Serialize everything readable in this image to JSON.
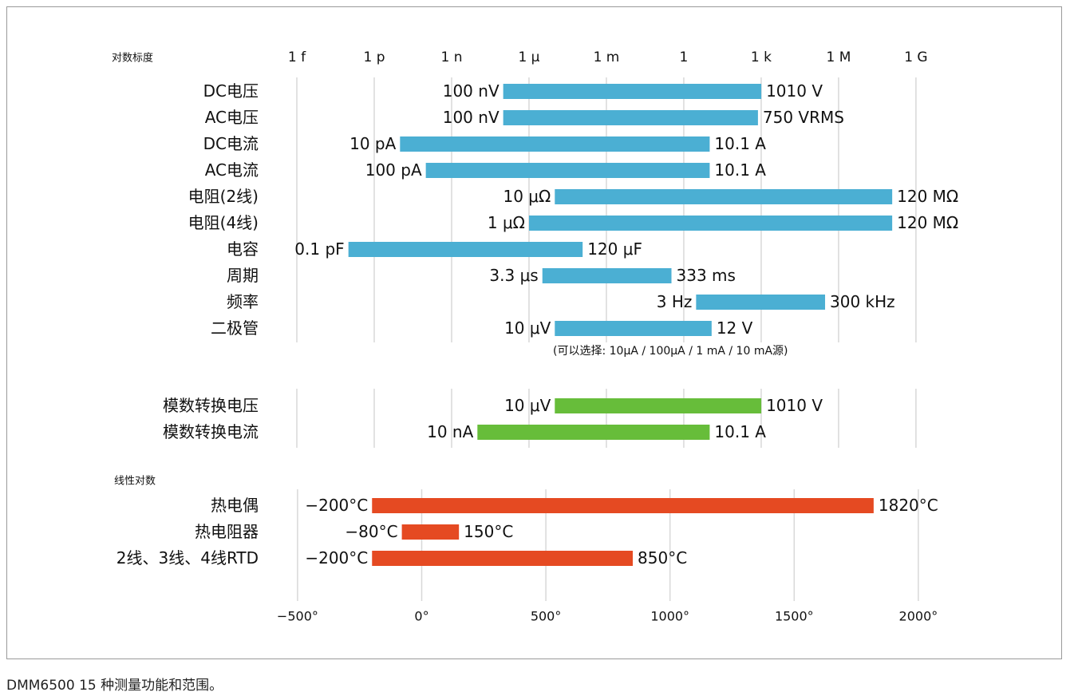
{
  "caption": "DMM6500 15 种测量功能和范围。",
  "colors": {
    "blue": "#4bafd3",
    "green": "#67bd3a",
    "red": "#e54a22",
    "grid": "#d8d8d8"
  },
  "chart_data": [
    {
      "type": "bar",
      "orientation": "horizontal-range",
      "scale": "log10",
      "scale_label": "对数标度",
      "tick_labels": [
        "1 f",
        "1 p",
        "1 n",
        "1 μ",
        "1 m",
        "1",
        "1 k",
        "1 M",
        "1 G"
      ],
      "tick_values": [
        -15,
        -12,
        -9,
        -6,
        -3,
        0,
        3,
        6,
        9
      ],
      "xlim": [
        -15,
        9
      ],
      "rows": [
        {
          "label": "DC电压",
          "min": 1e-07,
          "max": 1010,
          "min_label": "100 nV",
          "max_label": "1010 V"
        },
        {
          "label": "AC电压",
          "min": 1e-07,
          "max": 750,
          "min_label": "100 nV",
          "max_label": "750 VRMS"
        },
        {
          "label": "DC电流",
          "min": 1e-11,
          "max": 10.1,
          "min_label": "10 pA",
          "max_label": "10.1 A"
        },
        {
          "label": "AC电流",
          "min": 1e-10,
          "max": 10.1,
          "min_label": "100 pA",
          "max_label": "10.1 A"
        },
        {
          "label": "电阻(2线)",
          "min": 1e-05,
          "max": 120000000.0,
          "min_label": "10 μΩ",
          "max_label": "120 MΩ"
        },
        {
          "label": "电阻(4线)",
          "min": 1e-06,
          "max": 120000000.0,
          "min_label": "1 μΩ",
          "max_label": "120 MΩ"
        },
        {
          "label": "电容",
          "min": 1e-13,
          "max": 0.00012,
          "min_label": "0.1 pF",
          "max_label": "120 μF"
        },
        {
          "label": "周期",
          "min": 3.3e-06,
          "max": 0.333,
          "min_label": "3.3 μs",
          "max_label": "333 ms"
        },
        {
          "label": "频率",
          "min": 3,
          "max": 300000,
          "min_label": "3 Hz",
          "max_label": "300 kHz"
        },
        {
          "label": "二极管",
          "min": 1e-05,
          "max": 12,
          "min_label": "10 μV",
          "max_label": "12 V"
        }
      ],
      "annotation": "(可以选择: 10μA / 100μA / 1 mA / 10 mA源)"
    },
    {
      "type": "bar",
      "orientation": "horizontal-range",
      "scale": "log10",
      "xlim": [
        -15,
        9
      ],
      "rows": [
        {
          "label": "模数转换电压",
          "min": 1e-05,
          "max": 1010,
          "min_label": "10 μV",
          "max_label": "1010 V"
        },
        {
          "label": "模数转换电流",
          "min": 1e-08,
          "max": 10.1,
          "min_label": "10 nA",
          "max_label": "10.1 A"
        }
      ]
    },
    {
      "type": "bar",
      "orientation": "horizontal-range",
      "scale": "linear",
      "scale_label": "线性对数",
      "tick_labels": [
        "−500°",
        "0°",
        "500°",
        "1000°",
        "1500°",
        "2000°"
      ],
      "tick_values": [
        -500,
        0,
        500,
        1000,
        1500,
        2000
      ],
      "xlim": [
        -500,
        2000
      ],
      "rows": [
        {
          "label": "热电偶",
          "min": -200,
          "max": 1820,
          "min_label": "−200°C",
          "max_label": "1820°C"
        },
        {
          "label": "热电阻器",
          "min": -80,
          "max": 150,
          "min_label": "−80°C",
          "max_label": "150°C"
        },
        {
          "label": "2线、3线、4线RTD",
          "min": -200,
          "max": 850,
          "min_label": "−200°C",
          "max_label": "850°C"
        }
      ]
    }
  ]
}
